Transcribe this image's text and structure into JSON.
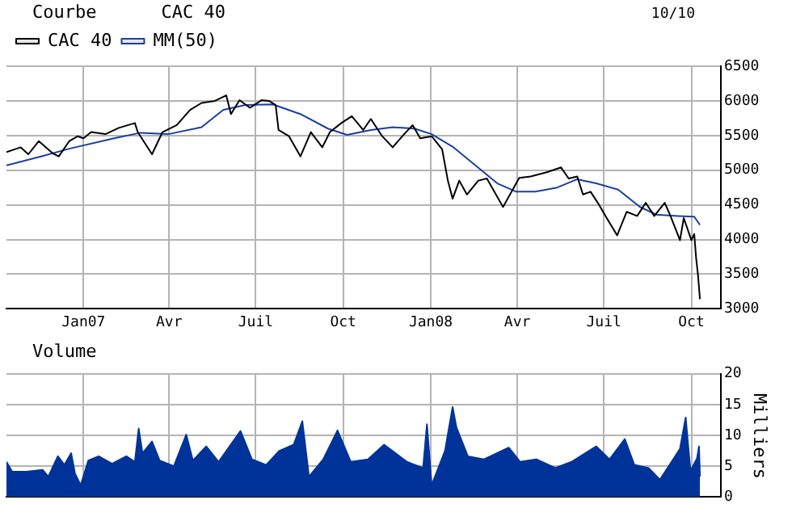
{
  "chart_data": [
    {
      "type": "line",
      "title": "CAC 40",
      "subtitle": "Courbe",
      "annotations": [
        "10/10"
      ],
      "legend": "top left",
      "grid": true,
      "marker": "none",
      "xlim": [
        "2006-10-12",
        "2008-11-01"
      ],
      "xticks": [
        {
          "value": "2007-01-01",
          "label": "Jan07"
        },
        {
          "value": "2007-04-01",
          "label": "Avr"
        },
        {
          "value": "2007-07-01",
          "label": "Juil"
        },
        {
          "value": "2007-10-01",
          "label": "Oct"
        },
        {
          "value": "2008-01-01",
          "label": "Jan08"
        },
        {
          "value": "2008-04-01",
          "label": "Avr"
        },
        {
          "value": "2008-07-01",
          "label": "Juil"
        },
        {
          "value": "2008-10-01",
          "label": "Oct"
        }
      ],
      "ylim": [
        3000,
        6500
      ],
      "yticks": [
        3000,
        3500,
        4000,
        4500,
        5000,
        5500,
        6000,
        6500
      ],
      "series": [
        {
          "name": "CAC 40",
          "color": "#000000",
          "x": [
            "2006-10-12",
            "2006-10-27",
            "2006-11-04",
            "2006-11-15",
            "2006-11-30",
            "2006-12-06",
            "2006-12-17",
            "2006-12-26",
            "2007-01-01",
            "2007-01-09",
            "2007-01-24",
            "2007-02-07",
            "2007-02-24",
            "2007-02-27",
            "2007-03-14",
            "2007-03-25",
            "2007-04-09",
            "2007-04-23",
            "2007-05-05",
            "2007-05-19",
            "2007-05-31",
            "2007-06-05",
            "2007-06-14",
            "2007-06-25",
            "2007-07-07",
            "2007-07-15",
            "2007-07-22",
            "2007-07-25",
            "2007-08-05",
            "2007-08-17",
            "2007-08-28",
            "2007-09-09",
            "2007-09-17",
            "2007-09-29",
            "2007-10-10",
            "2007-10-22",
            "2007-10-30",
            "2007-11-11",
            "2007-11-22",
            "2007-12-04",
            "2007-12-13",
            "2007-12-21",
            "2008-01-02",
            "2008-01-13",
            "2008-01-19",
            "2008-01-24",
            "2008-01-31",
            "2008-02-08",
            "2008-02-20",
            "2008-02-29",
            "2008-03-17",
            "2008-03-26",
            "2008-04-03",
            "2008-04-15",
            "2008-05-02",
            "2008-05-17",
            "2008-05-25",
            "2008-06-03",
            "2008-06-09",
            "2008-06-17",
            "2008-06-26",
            "2008-07-04",
            "2008-07-15",
            "2008-07-25",
            "2008-08-05",
            "2008-08-14",
            "2008-08-23",
            "2008-09-03",
            "2008-09-09",
            "2008-09-19",
            "2008-09-23",
            "2008-10-01",
            "2008-10-04",
            "2008-10-06",
            "2008-10-08",
            "2008-10-10"
          ],
          "values": [
            5260,
            5330,
            5230,
            5420,
            5240,
            5200,
            5420,
            5490,
            5460,
            5550,
            5520,
            5610,
            5680,
            5550,
            5230,
            5550,
            5650,
            5870,
            5970,
            6000,
            6080,
            5810,
            6010,
            5900,
            6010,
            6000,
            5940,
            5580,
            5490,
            5200,
            5550,
            5330,
            5550,
            5680,
            5780,
            5580,
            5740,
            5490,
            5330,
            5520,
            5650,
            5460,
            5490,
            5300,
            4850,
            4590,
            4850,
            4650,
            4850,
            4880,
            4470,
            4690,
            4890,
            4910,
            4970,
            5040,
            4880,
            4910,
            4650,
            4690,
            4500,
            4310,
            4060,
            4400,
            4340,
            4530,
            4340,
            4530,
            4340,
            3990,
            4310,
            3990,
            4080,
            3730,
            3480,
            3140
          ]
        },
        {
          "name": "MM(50)",
          "color": "#1a3fa0",
          "x": [
            "2006-10-12",
            "2006-11-18",
            "2006-12-17",
            "2007-02-02",
            "2007-03-02",
            "2007-03-31",
            "2007-05-05",
            "2007-05-28",
            "2007-06-20",
            "2007-07-19",
            "2007-08-17",
            "2007-09-15",
            "2007-10-05",
            "2007-10-30",
            "2007-11-22",
            "2007-12-15",
            "2008-01-02",
            "2008-01-25",
            "2008-02-17",
            "2008-03-11",
            "2008-03-31",
            "2008-04-20",
            "2008-05-13",
            "2008-06-03",
            "2008-06-23",
            "2008-07-16",
            "2008-08-08",
            "2008-08-25",
            "2008-09-17",
            "2008-10-04",
            "2008-10-10"
          ],
          "values": [
            5070,
            5200,
            5310,
            5460,
            5540,
            5520,
            5620,
            5870,
            5940,
            5950,
            5810,
            5600,
            5510,
            5580,
            5620,
            5600,
            5520,
            5330,
            5070,
            4810,
            4690,
            4690,
            4750,
            4870,
            4810,
            4720,
            4470,
            4360,
            4340,
            4330,
            4210
          ]
        }
      ]
    },
    {
      "type": "area",
      "title": "Volume",
      "ylabel": "Milliers",
      "grid": true,
      "tick_labels": "y",
      "marker": "none",
      "xlim": [
        "2006-10-12",
        "2008-11-01"
      ],
      "xticks": [
        {
          "value": "2007-01-01",
          "label": null
        },
        {
          "value": "2007-04-01",
          "label": null
        },
        {
          "value": "2007-07-01",
          "label": null
        },
        {
          "value": "2007-10-01",
          "label": null
        },
        {
          "value": "2008-01-01",
          "label": null
        },
        {
          "value": "2008-04-01",
          "label": null
        },
        {
          "value": "2008-07-01",
          "label": null
        },
        {
          "value": "2008-10-01",
          "label": null
        }
      ],
      "ylim": [
        0,
        20
      ],
      "yticks": [
        0,
        5,
        10,
        15,
        20
      ],
      "series": [
        {
          "color": "#003399",
          "x": [
            "2006-10-12",
            "2006-10-18",
            "2006-11-02",
            "2006-11-19",
            "2006-11-25",
            "2006-12-05",
            "2006-12-12",
            "2006-12-19",
            "2006-12-23",
            "2006-12-29",
            "2007-01-06",
            "2007-01-17",
            "2007-01-31",
            "2007-02-15",
            "2007-02-24",
            "2007-02-28",
            "2007-03-04",
            "2007-03-14",
            "2007-03-22",
            "2007-04-06",
            "2007-04-19",
            "2007-04-26",
            "2007-05-10",
            "2007-05-23",
            "2007-06-15",
            "2007-06-27",
            "2007-07-12",
            "2007-07-26",
            "2007-08-10",
            "2007-08-19",
            "2007-08-26",
            "2007-09-10",
            "2007-09-25",
            "2007-10-09",
            "2007-10-27",
            "2007-11-13",
            "2007-12-07",
            "2007-12-24",
            "2007-12-28",
            "2008-01-02",
            "2008-01-16",
            "2008-01-24",
            "2008-01-28",
            "2008-02-09",
            "2008-02-26",
            "2008-03-23",
            "2008-04-04",
            "2008-04-21",
            "2008-05-11",
            "2008-05-28",
            "2008-06-23",
            "2008-07-07",
            "2008-07-23",
            "2008-08-02",
            "2008-08-17",
            "2008-08-29",
            "2008-09-11",
            "2008-09-19",
            "2008-09-25",
            "2008-09-30",
            "2008-10-07",
            "2008-10-09",
            "2008-10-10"
          ],
          "values": [
            5.7,
            4.1,
            4.1,
            4.4,
            3.3,
            6.6,
            5.2,
            7.1,
            3.8,
            1.9,
            5.9,
            6.6,
            5.4,
            6.6,
            5.7,
            11.1,
            7.1,
            9,
            5.9,
            5,
            10.1,
            5.9,
            8.2,
            5.7,
            10.7,
            6.1,
            5.2,
            7.5,
            8.5,
            12.3,
            3.3,
            6.1,
            10.8,
            5.7,
            6.1,
            8.5,
            5.7,
            4.7,
            11.8,
            1.9,
            7.5,
            14.6,
            11.3,
            6.6,
            6.1,
            8,
            5.7,
            6.1,
            4.7,
            5.7,
            8.2,
            6.1,
            9.4,
            5.2,
            4.7,
            2.8,
            5.9,
            7.8,
            12.9,
            4.2,
            6.3,
            8.2,
            3.3
          ]
        }
      ]
    }
  ]
}
